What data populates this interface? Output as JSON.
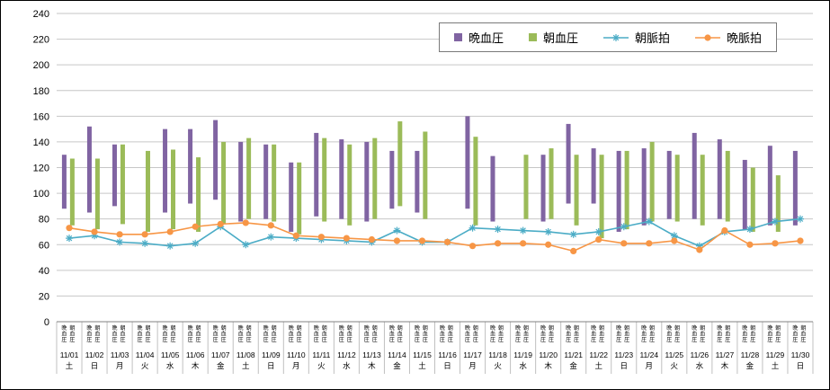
{
  "chart_data": {
    "type": "bar",
    "title": "",
    "xlabel": "",
    "ylabel": "",
    "y_axis": {
      "min": 0,
      "max": 240,
      "step": 20
    },
    "grid": true,
    "legend_position": "top",
    "x_sublabels": [
      "晩血圧",
      "朝血圧"
    ],
    "categories": [
      {
        "date": "11/01",
        "weekday": "土"
      },
      {
        "date": "11/02",
        "weekday": "日"
      },
      {
        "date": "11/03",
        "weekday": "月"
      },
      {
        "date": "11/04",
        "weekday": "火"
      },
      {
        "date": "11/05",
        "weekday": "水"
      },
      {
        "date": "11/06",
        "weekday": "木"
      },
      {
        "date": "11/07",
        "weekday": "金"
      },
      {
        "date": "11/08",
        "weekday": "土"
      },
      {
        "date": "11/09",
        "weekday": "日"
      },
      {
        "date": "11/10",
        "weekday": "月"
      },
      {
        "date": "11/11",
        "weekday": "火"
      },
      {
        "date": "11/12",
        "weekday": "水"
      },
      {
        "date": "11/13",
        "weekday": "木"
      },
      {
        "date": "11/14",
        "weekday": "金"
      },
      {
        "date": "11/15",
        "weekday": "土"
      },
      {
        "date": "11/16",
        "weekday": "日"
      },
      {
        "date": "11/17",
        "weekday": "月"
      },
      {
        "date": "11/18",
        "weekday": "火"
      },
      {
        "date": "11/19",
        "weekday": "水"
      },
      {
        "date": "11/20",
        "weekday": "木"
      },
      {
        "date": "11/21",
        "weekday": "金"
      },
      {
        "date": "11/22",
        "weekday": "土"
      },
      {
        "date": "11/23",
        "weekday": "日"
      },
      {
        "date": "11/24",
        "weekday": "月"
      },
      {
        "date": "11/25",
        "weekday": "火"
      },
      {
        "date": "11/26",
        "weekday": "水"
      },
      {
        "date": "11/27",
        "weekday": "木"
      },
      {
        "date": "11/28",
        "weekday": "金"
      },
      {
        "date": "11/29",
        "weekday": "土"
      },
      {
        "date": "11/30",
        "weekday": "日"
      }
    ],
    "series": [
      {
        "name": "晩血圧",
        "type": "range-bar",
        "color": "#8064A2",
        "ranges": [
          [
            88,
            130
          ],
          [
            85,
            152
          ],
          [
            90,
            138
          ],
          null,
          [
            85,
            150
          ],
          [
            92,
            150
          ],
          [
            95,
            157
          ],
          [
            78,
            140
          ],
          [
            80,
            138
          ],
          [
            70,
            124
          ],
          [
            82,
            147
          ],
          [
            80,
            142
          ],
          [
            78,
            140
          ],
          [
            88,
            133
          ],
          [
            85,
            133
          ],
          null,
          [
            88,
            160
          ],
          [
            78,
            129
          ],
          null,
          [
            78,
            130
          ],
          [
            92,
            154
          ],
          [
            92,
            135
          ],
          [
            70,
            133
          ],
          [
            75,
            135
          ],
          [
            80,
            133
          ],
          [
            80,
            147
          ],
          [
            80,
            142
          ],
          [
            72,
            126
          ],
          [
            75,
            137
          ],
          [
            75,
            133
          ]
        ]
      },
      {
        "name": "朝血圧",
        "type": "range-bar",
        "color": "#9BBB59",
        "ranges": [
          [
            75,
            127
          ],
          [
            72,
            127
          ],
          [
            76,
            138
          ],
          [
            70,
            133
          ],
          [
            72,
            134
          ],
          [
            70,
            128
          ],
          [
            76,
            140
          ],
          [
            80,
            143
          ],
          [
            78,
            138
          ],
          [
            68,
            124
          ],
          [
            78,
            143
          ],
          [
            75,
            138
          ],
          [
            80,
            143
          ],
          [
            90,
            156
          ],
          [
            80,
            148
          ],
          null,
          [
            75,
            144
          ],
          null,
          [
            80,
            130
          ],
          [
            80,
            135
          ],
          [
            75,
            130
          ],
          [
            65,
            130
          ],
          [
            72,
            133
          ],
          [
            78,
            140
          ],
          [
            78,
            130
          ],
          [
            75,
            130
          ],
          [
            78,
            133
          ],
          [
            70,
            120
          ],
          [
            70,
            114
          ],
          null
        ]
      },
      {
        "name": "朝脈拍",
        "type": "line",
        "color": "#4BACC6",
        "marker": "asterisk",
        "values": [
          65,
          67,
          62,
          61,
          59,
          61,
          74,
          60,
          66,
          65,
          64,
          63,
          62,
          71,
          62,
          62,
          73,
          72,
          71,
          70,
          68,
          70,
          74,
          78,
          67,
          59,
          70,
          72,
          78,
          80
        ]
      },
      {
        "name": "晩脈拍",
        "type": "line",
        "color": "#F79646",
        "marker": "circle",
        "values": [
          73,
          70,
          68,
          68,
          70,
          74,
          76,
          77,
          75,
          67,
          66,
          65,
          64,
          63,
          63,
          62,
          59,
          61,
          61,
          60,
          55,
          64,
          61,
          61,
          63,
          56,
          71,
          60,
          61,
          63
        ]
      }
    ]
  }
}
